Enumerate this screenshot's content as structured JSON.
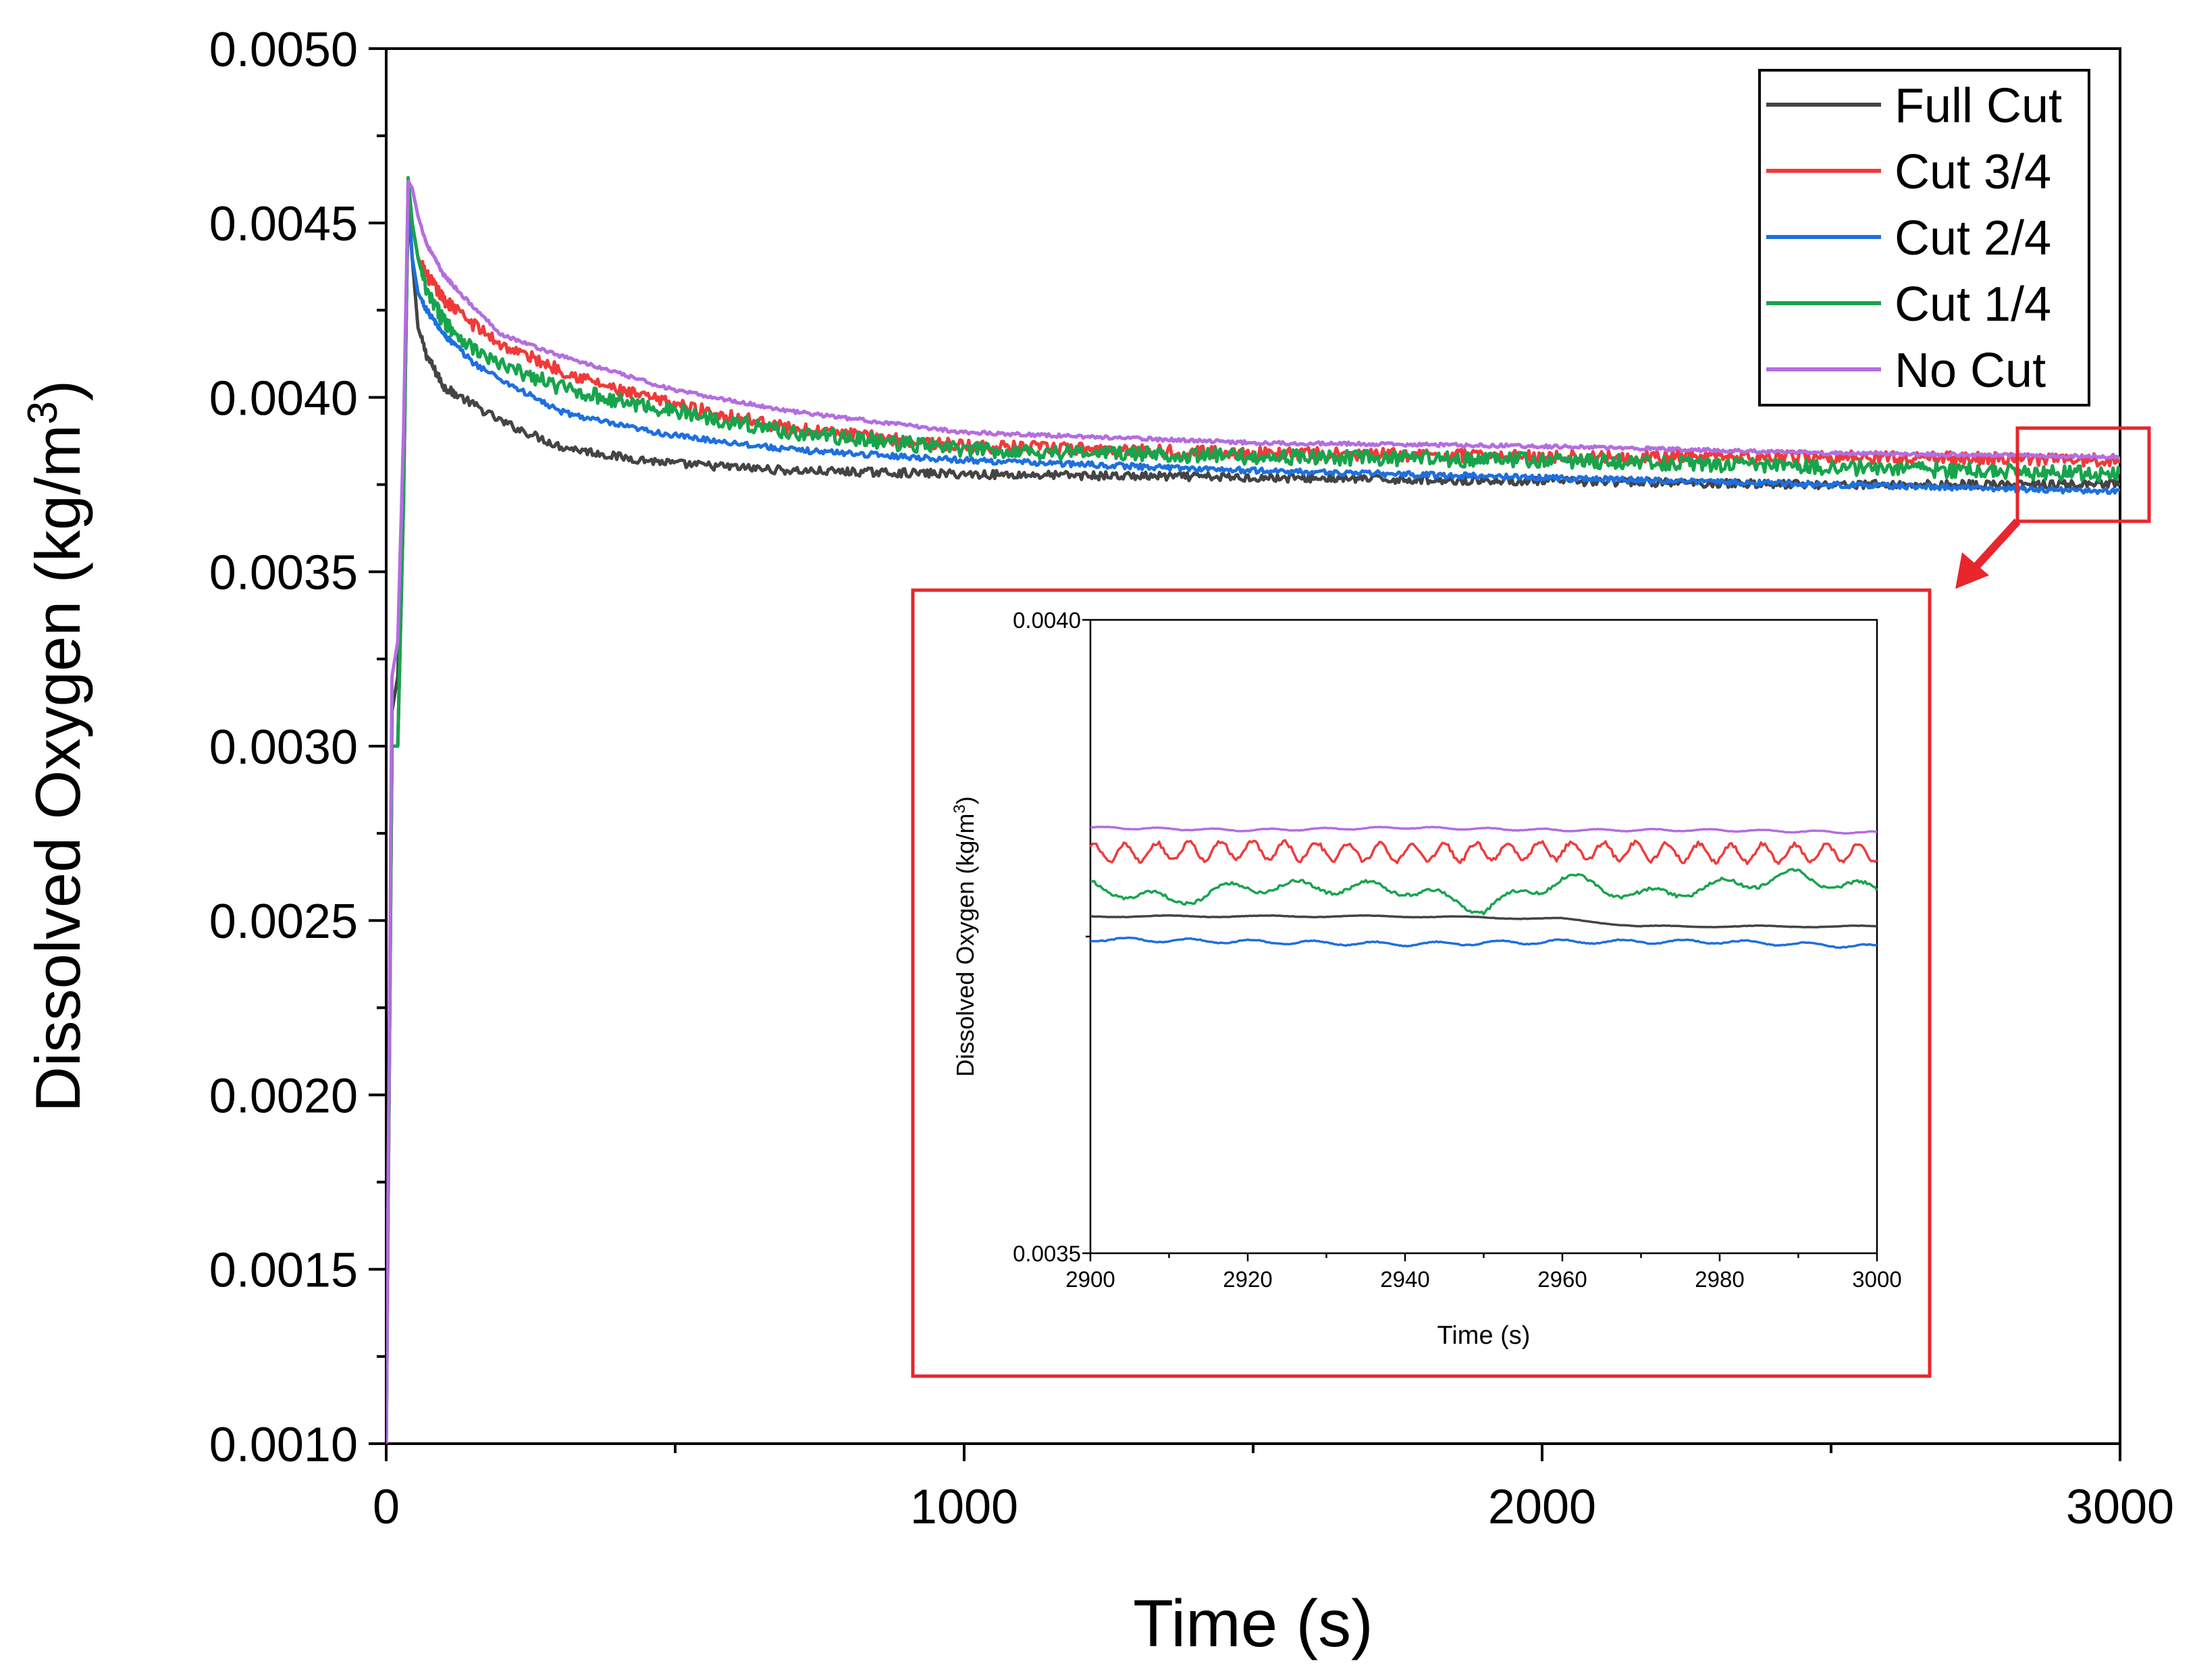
{
  "chart_data": [
    {
      "type": "line",
      "xlabel": "Time (s)",
      "ylabel": "Dissolved Oxygen (kg/m",
      "ylabel_sup": "3",
      "ylabel_close": ")",
      "xlim": [
        0,
        3000
      ],
      "ylim": [
        0.001,
        0.005
      ],
      "x_ticks": [
        0,
        1000,
        2000,
        3000
      ],
      "x_tick_labels": [
        "0",
        "1000",
        "2000",
        "3000"
      ],
      "y_ticks": [
        0.001,
        0.0015,
        0.002,
        0.0025,
        0.003,
        0.0035,
        0.004,
        0.0045,
        0.005
      ],
      "y_tick_labels": [
        "0.0010",
        "0.0015",
        "0.0020",
        "0.0025",
        "0.0030",
        "0.0035",
        "0.0040",
        "0.0045",
        "0.0050"
      ],
      "legend_position": "top-right",
      "series": [
        {
          "name": "Full Cut",
          "color": "#444444",
          "x": [
            0,
            10,
            20,
            30,
            38,
            45,
            55,
            70,
            100,
            150,
            200,
            300,
            400,
            500,
            700,
            1000,
            1500,
            2000,
            2500,
            3000
          ],
          "values": [
            0.001,
            0.0031,
            0.0032,
            0.0038,
            0.00455,
            0.0044,
            0.0042,
            0.00412,
            0.00403,
            0.00398,
            0.00393,
            0.00386,
            0.00383,
            0.00381,
            0.00379,
            0.00378,
            0.00377,
            0.00376,
            0.00375,
            0.00375
          ]
        },
        {
          "name": "Cut 3/4",
          "color": "#f03a3a",
          "x": [
            0,
            10,
            20,
            30,
            38,
            45,
            55,
            70,
            100,
            150,
            200,
            300,
            400,
            500,
            700,
            1000,
            1500,
            2000,
            2500,
            3000
          ],
          "values": [
            0.001,
            0.003,
            0.003,
            0.0037,
            0.00462,
            0.0045,
            0.0044,
            0.00435,
            0.00428,
            0.00421,
            0.00415,
            0.00408,
            0.00402,
            0.00398,
            0.00391,
            0.00386,
            0.00384,
            0.00383,
            0.00383,
            0.00382
          ]
        },
        {
          "name": "Cut 2/4",
          "color": "#1e6fe0",
          "x": [
            0,
            10,
            20,
            30,
            38,
            45,
            55,
            70,
            100,
            150,
            200,
            300,
            400,
            500,
            700,
            1000,
            1500,
            2000,
            2500,
            3000
          ],
          "values": [
            0.001,
            0.003,
            0.003,
            0.0037,
            0.0046,
            0.0044,
            0.0043,
            0.00425,
            0.00418,
            0.0041,
            0.00405,
            0.00396,
            0.00392,
            0.00389,
            0.00385,
            0.00382,
            0.00379,
            0.00377,
            0.00375,
            0.00373
          ]
        },
        {
          "name": "Cut 1/4",
          "color": "#17a44c",
          "x": [
            0,
            10,
            20,
            30,
            38,
            45,
            55,
            70,
            100,
            150,
            200,
            300,
            400,
            500,
            700,
            1000,
            1500,
            2000,
            2500,
            3000
          ],
          "values": [
            0.001,
            0.003,
            0.003,
            0.0037,
            0.00463,
            0.0045,
            0.0044,
            0.0043,
            0.00422,
            0.00414,
            0.00409,
            0.00403,
            0.00399,
            0.00396,
            0.0039,
            0.00385,
            0.00383,
            0.00382,
            0.0038,
            0.00378
          ]
        },
        {
          "name": "No Cut",
          "color": "#b46de0",
          "x": [
            0,
            10,
            20,
            30,
            38,
            45,
            55,
            70,
            100,
            150,
            200,
            300,
            400,
            500,
            700,
            1000,
            1500,
            2000,
            2500,
            3000
          ],
          "values": [
            0.001,
            0.0032,
            0.0033,
            0.0039,
            0.00462,
            0.0046,
            0.00452,
            0.00444,
            0.00435,
            0.00426,
            0.00418,
            0.00412,
            0.00407,
            0.00402,
            0.00396,
            0.0039,
            0.00387,
            0.00386,
            0.00384,
            0.00383
          ]
        }
      ]
    },
    {
      "type": "line",
      "xlabel": "Time (s)",
      "ylabel": "Dissolved Oxygen (kg/m",
      "ylabel_sup": "3",
      "ylabel_close": ")",
      "xlim": [
        2900,
        3000
      ],
      "ylim": [
        0.0035,
        0.004
      ],
      "x_ticks": [
        2900,
        2920,
        2940,
        2960,
        2980,
        3000
      ],
      "x_tick_labels": [
        "2900",
        "2920",
        "2940",
        "2960",
        "2980",
        "3000"
      ],
      "y_ticks": [
        0.0035,
        0.004
      ],
      "y_tick_labels": [
        "0.0035",
        "0.0040"
      ],
      "series": [
        {
          "name": "No Cut",
          "color": "#b46de0",
          "x": [
            2900,
            2920,
            2940,
            2960,
            2980,
            3000
          ],
          "values": [
            0.003836,
            0.003834,
            0.003836,
            0.003834,
            0.003834,
            0.003832
          ]
        },
        {
          "name": "Cut 3/4",
          "color": "#f03a3a",
          "x": [
            2900,
            2920,
            2940,
            2960,
            2980,
            3000
          ],
          "values": [
            0.003816,
            0.003818,
            0.003816,
            0.003818,
            0.003816,
            0.003816
          ]
        },
        {
          "name": "Cut 1/4",
          "color": "#17a44c",
          "x": [
            2900,
            2910,
            2920,
            2940,
            2950,
            2960,
            2970,
            2990,
            3000
          ],
          "values": [
            0.00379,
            0.003778,
            0.00379,
            0.003788,
            0.003772,
            0.003796,
            0.003782,
            0.003798,
            0.003786
          ]
        },
        {
          "name": "Full Cut",
          "color": "#444444",
          "x": [
            2900,
            2920,
            2940,
            2960,
            2970,
            2980,
            3000
          ],
          "values": [
            0.003766,
            0.003766,
            0.003766,
            0.003764,
            0.003758,
            0.003758,
            0.003758
          ]
        },
        {
          "name": "Cut 2/4",
          "color": "#1e6fe0",
          "x": [
            2900,
            2920,
            2940,
            2960,
            2980,
            3000
          ],
          "values": [
            0.003748,
            0.003746,
            0.003744,
            0.003746,
            0.003746,
            0.003742
          ]
        }
      ]
    }
  ]
}
